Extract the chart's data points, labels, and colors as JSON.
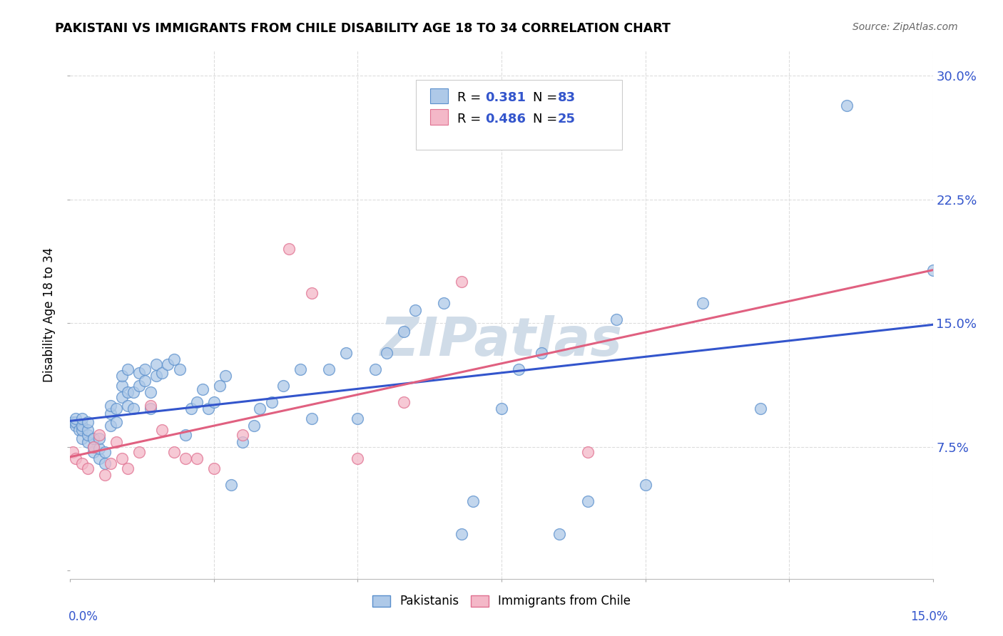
{
  "title": "PAKISTANI VS IMMIGRANTS FROM CHILE DISABILITY AGE 18 TO 34 CORRELATION CHART",
  "source": "Source: ZipAtlas.com",
  "ylabel": "Disability Age 18 to 34",
  "xmin": 0.0,
  "xmax": 0.15,
  "ymin": -0.005,
  "ymax": 0.315,
  "pakistanis_R": 0.381,
  "pakistanis_N": 83,
  "chile_R": 0.486,
  "chile_N": 25,
  "blue_fill": "#aec9e8",
  "blue_edge": "#5a8fcc",
  "pink_fill": "#f4b8c8",
  "pink_edge": "#e07090",
  "blue_line": "#3355cc",
  "pink_line": "#e06080",
  "blue_text": "#3355cc",
  "watermark_color": "#d0dce8",
  "grid_color": "#dddddd",
  "pakistanis_x": [
    0.0005,
    0.001,
    0.001,
    0.001,
    0.0015,
    0.002,
    0.002,
    0.002,
    0.002,
    0.003,
    0.003,
    0.003,
    0.003,
    0.004,
    0.004,
    0.004,
    0.005,
    0.005,
    0.005,
    0.006,
    0.006,
    0.007,
    0.007,
    0.007,
    0.008,
    0.008,
    0.009,
    0.009,
    0.009,
    0.01,
    0.01,
    0.01,
    0.011,
    0.011,
    0.012,
    0.012,
    0.013,
    0.013,
    0.014,
    0.014,
    0.015,
    0.015,
    0.016,
    0.017,
    0.018,
    0.019,
    0.02,
    0.021,
    0.022,
    0.023,
    0.024,
    0.025,
    0.026,
    0.027,
    0.028,
    0.03,
    0.032,
    0.033,
    0.035,
    0.037,
    0.04,
    0.042,
    0.045,
    0.048,
    0.05,
    0.053,
    0.055,
    0.058,
    0.06,
    0.065,
    0.068,
    0.07,
    0.075,
    0.078,
    0.082,
    0.085,
    0.09,
    0.095,
    0.1,
    0.11,
    0.12,
    0.135,
    0.15
  ],
  "pakistanis_y": [
    0.09,
    0.088,
    0.09,
    0.092,
    0.085,
    0.08,
    0.085,
    0.088,
    0.092,
    0.078,
    0.082,
    0.085,
    0.09,
    0.072,
    0.075,
    0.08,
    0.068,
    0.074,
    0.08,
    0.065,
    0.072,
    0.088,
    0.095,
    0.1,
    0.09,
    0.098,
    0.105,
    0.112,
    0.118,
    0.1,
    0.108,
    0.122,
    0.098,
    0.108,
    0.112,
    0.12,
    0.115,
    0.122,
    0.098,
    0.108,
    0.118,
    0.125,
    0.12,
    0.125,
    0.128,
    0.122,
    0.082,
    0.098,
    0.102,
    0.11,
    0.098,
    0.102,
    0.112,
    0.118,
    0.052,
    0.078,
    0.088,
    0.098,
    0.102,
    0.112,
    0.122,
    0.092,
    0.122,
    0.132,
    0.092,
    0.122,
    0.132,
    0.145,
    0.158,
    0.162,
    0.022,
    0.042,
    0.098,
    0.122,
    0.132,
    0.022,
    0.042,
    0.152,
    0.052,
    0.162,
    0.098,
    0.282,
    0.182
  ],
  "chile_x": [
    0.0005,
    0.001,
    0.002,
    0.003,
    0.004,
    0.005,
    0.006,
    0.007,
    0.008,
    0.009,
    0.01,
    0.012,
    0.014,
    0.016,
    0.018,
    0.02,
    0.022,
    0.025,
    0.03,
    0.038,
    0.042,
    0.05,
    0.058,
    0.068,
    0.09
  ],
  "chile_y": [
    0.072,
    0.068,
    0.065,
    0.062,
    0.075,
    0.082,
    0.058,
    0.065,
    0.078,
    0.068,
    0.062,
    0.072,
    0.1,
    0.085,
    0.072,
    0.068,
    0.068,
    0.062,
    0.082,
    0.195,
    0.168,
    0.068,
    0.102,
    0.175,
    0.072
  ]
}
